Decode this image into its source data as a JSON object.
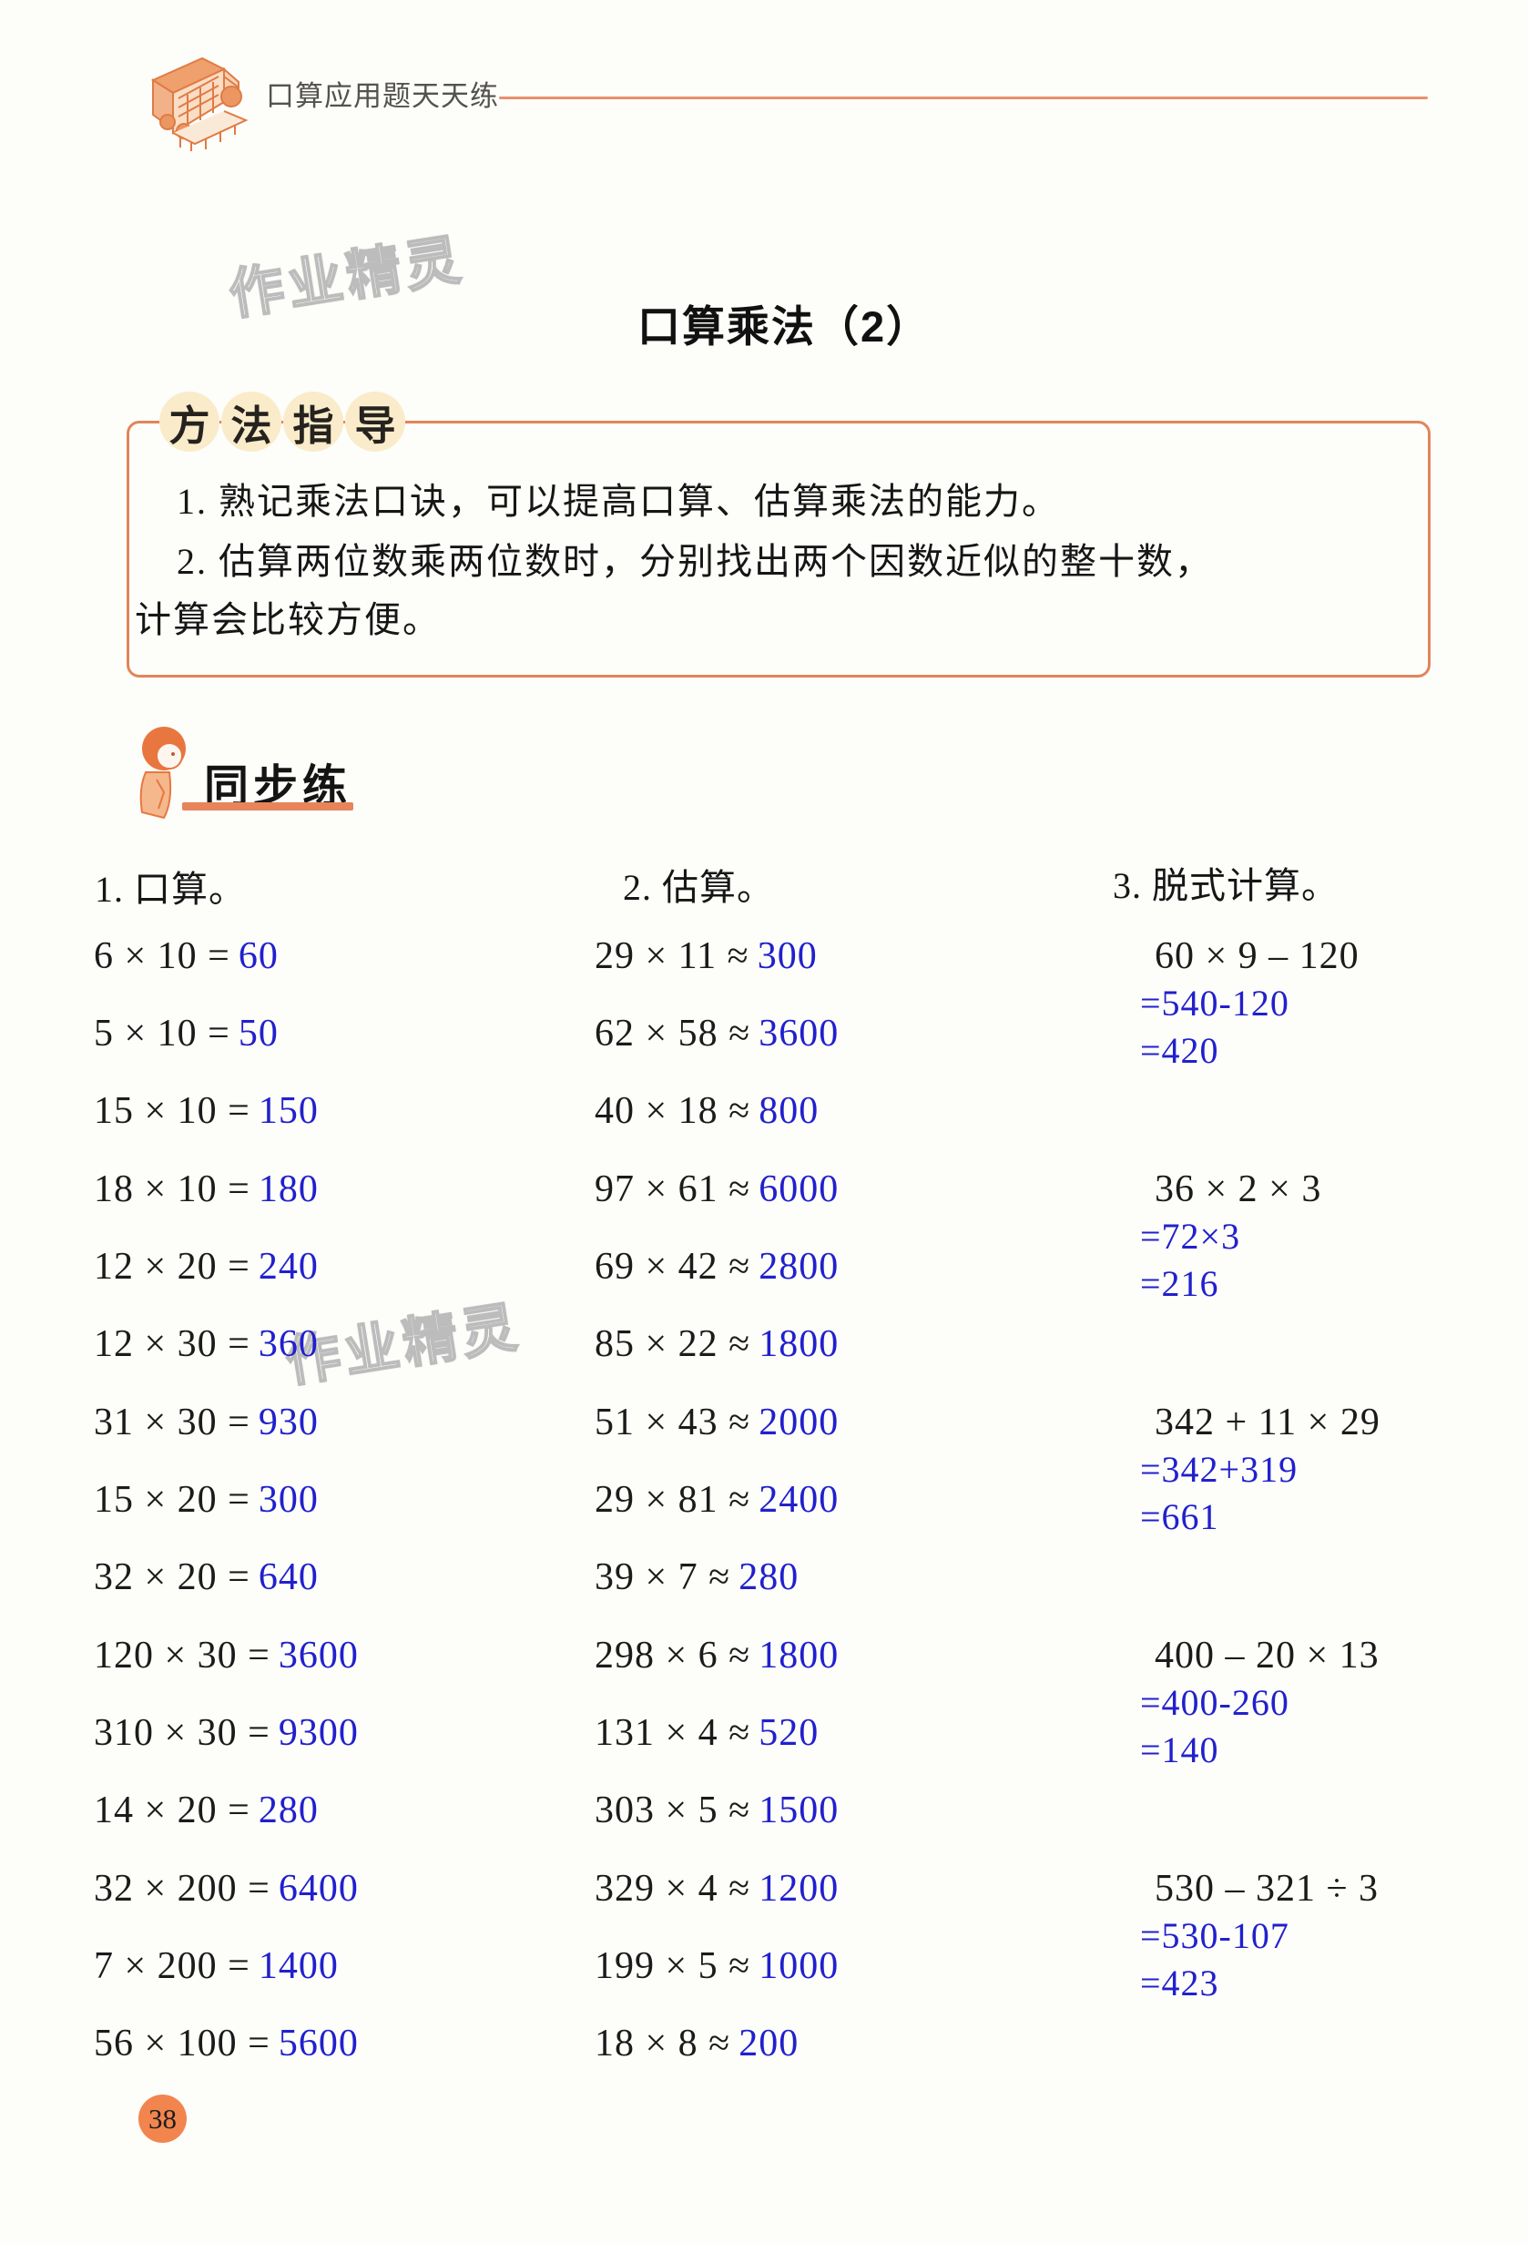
{
  "header": {
    "brand": "口算应用题天天练"
  },
  "watermark": "作业精灵",
  "title": "口算乘法（2）",
  "method_guide": {
    "label": "方法指导",
    "lines": [
      "1. 熟记乘法口诀，可以提高口算、估算乘法的能力。",
      "2. 估算两位数乘两位数时，分别找出两个因数近似的整十数，",
      "计算会比较方便。"
    ]
  },
  "section": {
    "label": "同步练"
  },
  "exercises": {
    "col1": {
      "heading": "1. 口算。",
      "items": [
        {
          "q": "6 × 10 =",
          "a": "60"
        },
        {
          "q": "5 × 10 =",
          "a": "50"
        },
        {
          "q": "15 × 10 =",
          "a": "150"
        },
        {
          "q": "18 × 10 =",
          "a": "180"
        },
        {
          "q": "12 × 20 =",
          "a": "240"
        },
        {
          "q": "12 × 30 =",
          "a": "360"
        },
        {
          "q": "31 × 30 =",
          "a": "930"
        },
        {
          "q": "15 × 20 =",
          "a": "300"
        },
        {
          "q": "32 × 20 =",
          "a": "640"
        },
        {
          "q": "120 × 30 =",
          "a": "3600"
        },
        {
          "q": "310 × 30 =",
          "a": "9300"
        },
        {
          "q": "14 × 20 =",
          "a": "280"
        },
        {
          "q": "32 × 200 =",
          "a": "6400"
        },
        {
          "q": "7 × 200 =",
          "a": "1400"
        },
        {
          "q": "56 × 100 =",
          "a": "5600"
        }
      ]
    },
    "col2": {
      "heading": "2. 估算。",
      "items": [
        {
          "q": "29 × 11 ≈",
          "a": "300"
        },
        {
          "q": "62 × 58 ≈",
          "a": "3600"
        },
        {
          "q": "40 × 18 ≈",
          "a": "800"
        },
        {
          "q": "97 × 61 ≈",
          "a": "6000"
        },
        {
          "q": "69 × 42 ≈",
          "a": "2800"
        },
        {
          "q": "85 × 22 ≈",
          "a": "1800"
        },
        {
          "q": "51 × 43 ≈",
          "a": "2000"
        },
        {
          "q": "29 × 81 ≈",
          "a": "2400"
        },
        {
          "q": "39 × 7 ≈",
          "a": "280"
        },
        {
          "q": "298 × 6 ≈",
          "a": "1800"
        },
        {
          "q": "131 × 4 ≈",
          "a": "520"
        },
        {
          "q": "303 × 5 ≈",
          "a": "1500"
        },
        {
          "q": "329 × 4 ≈",
          "a": "1200"
        },
        {
          "q": "199 × 5 ≈",
          "a": "1000"
        },
        {
          "q": "18 × 8 ≈",
          "a": "200"
        }
      ]
    },
    "col3": {
      "heading": "3. 脱式计算。",
      "items": [
        {
          "expr": "60 × 9 – 120",
          "steps": [
            "=540-120",
            "=420"
          ]
        },
        {
          "expr": "36 × 2 × 3",
          "steps": [
            "=72×3",
            "=216"
          ]
        },
        {
          "expr": "342 + 11 × 29",
          "steps": [
            "=342+319",
            "=661"
          ]
        },
        {
          "expr": "400 – 20 × 13",
          "steps": [
            "=400-260",
            "=140"
          ]
        },
        {
          "expr": "530 – 321 ÷ 3",
          "steps": [
            "=530-107",
            "=423"
          ]
        }
      ]
    }
  },
  "page_number": "38",
  "colors": {
    "accent_orange": "#e8845a",
    "highlight_cream": "#faecca",
    "answer_blue": "#2120cd",
    "page_circle": "#f2854e"
  }
}
